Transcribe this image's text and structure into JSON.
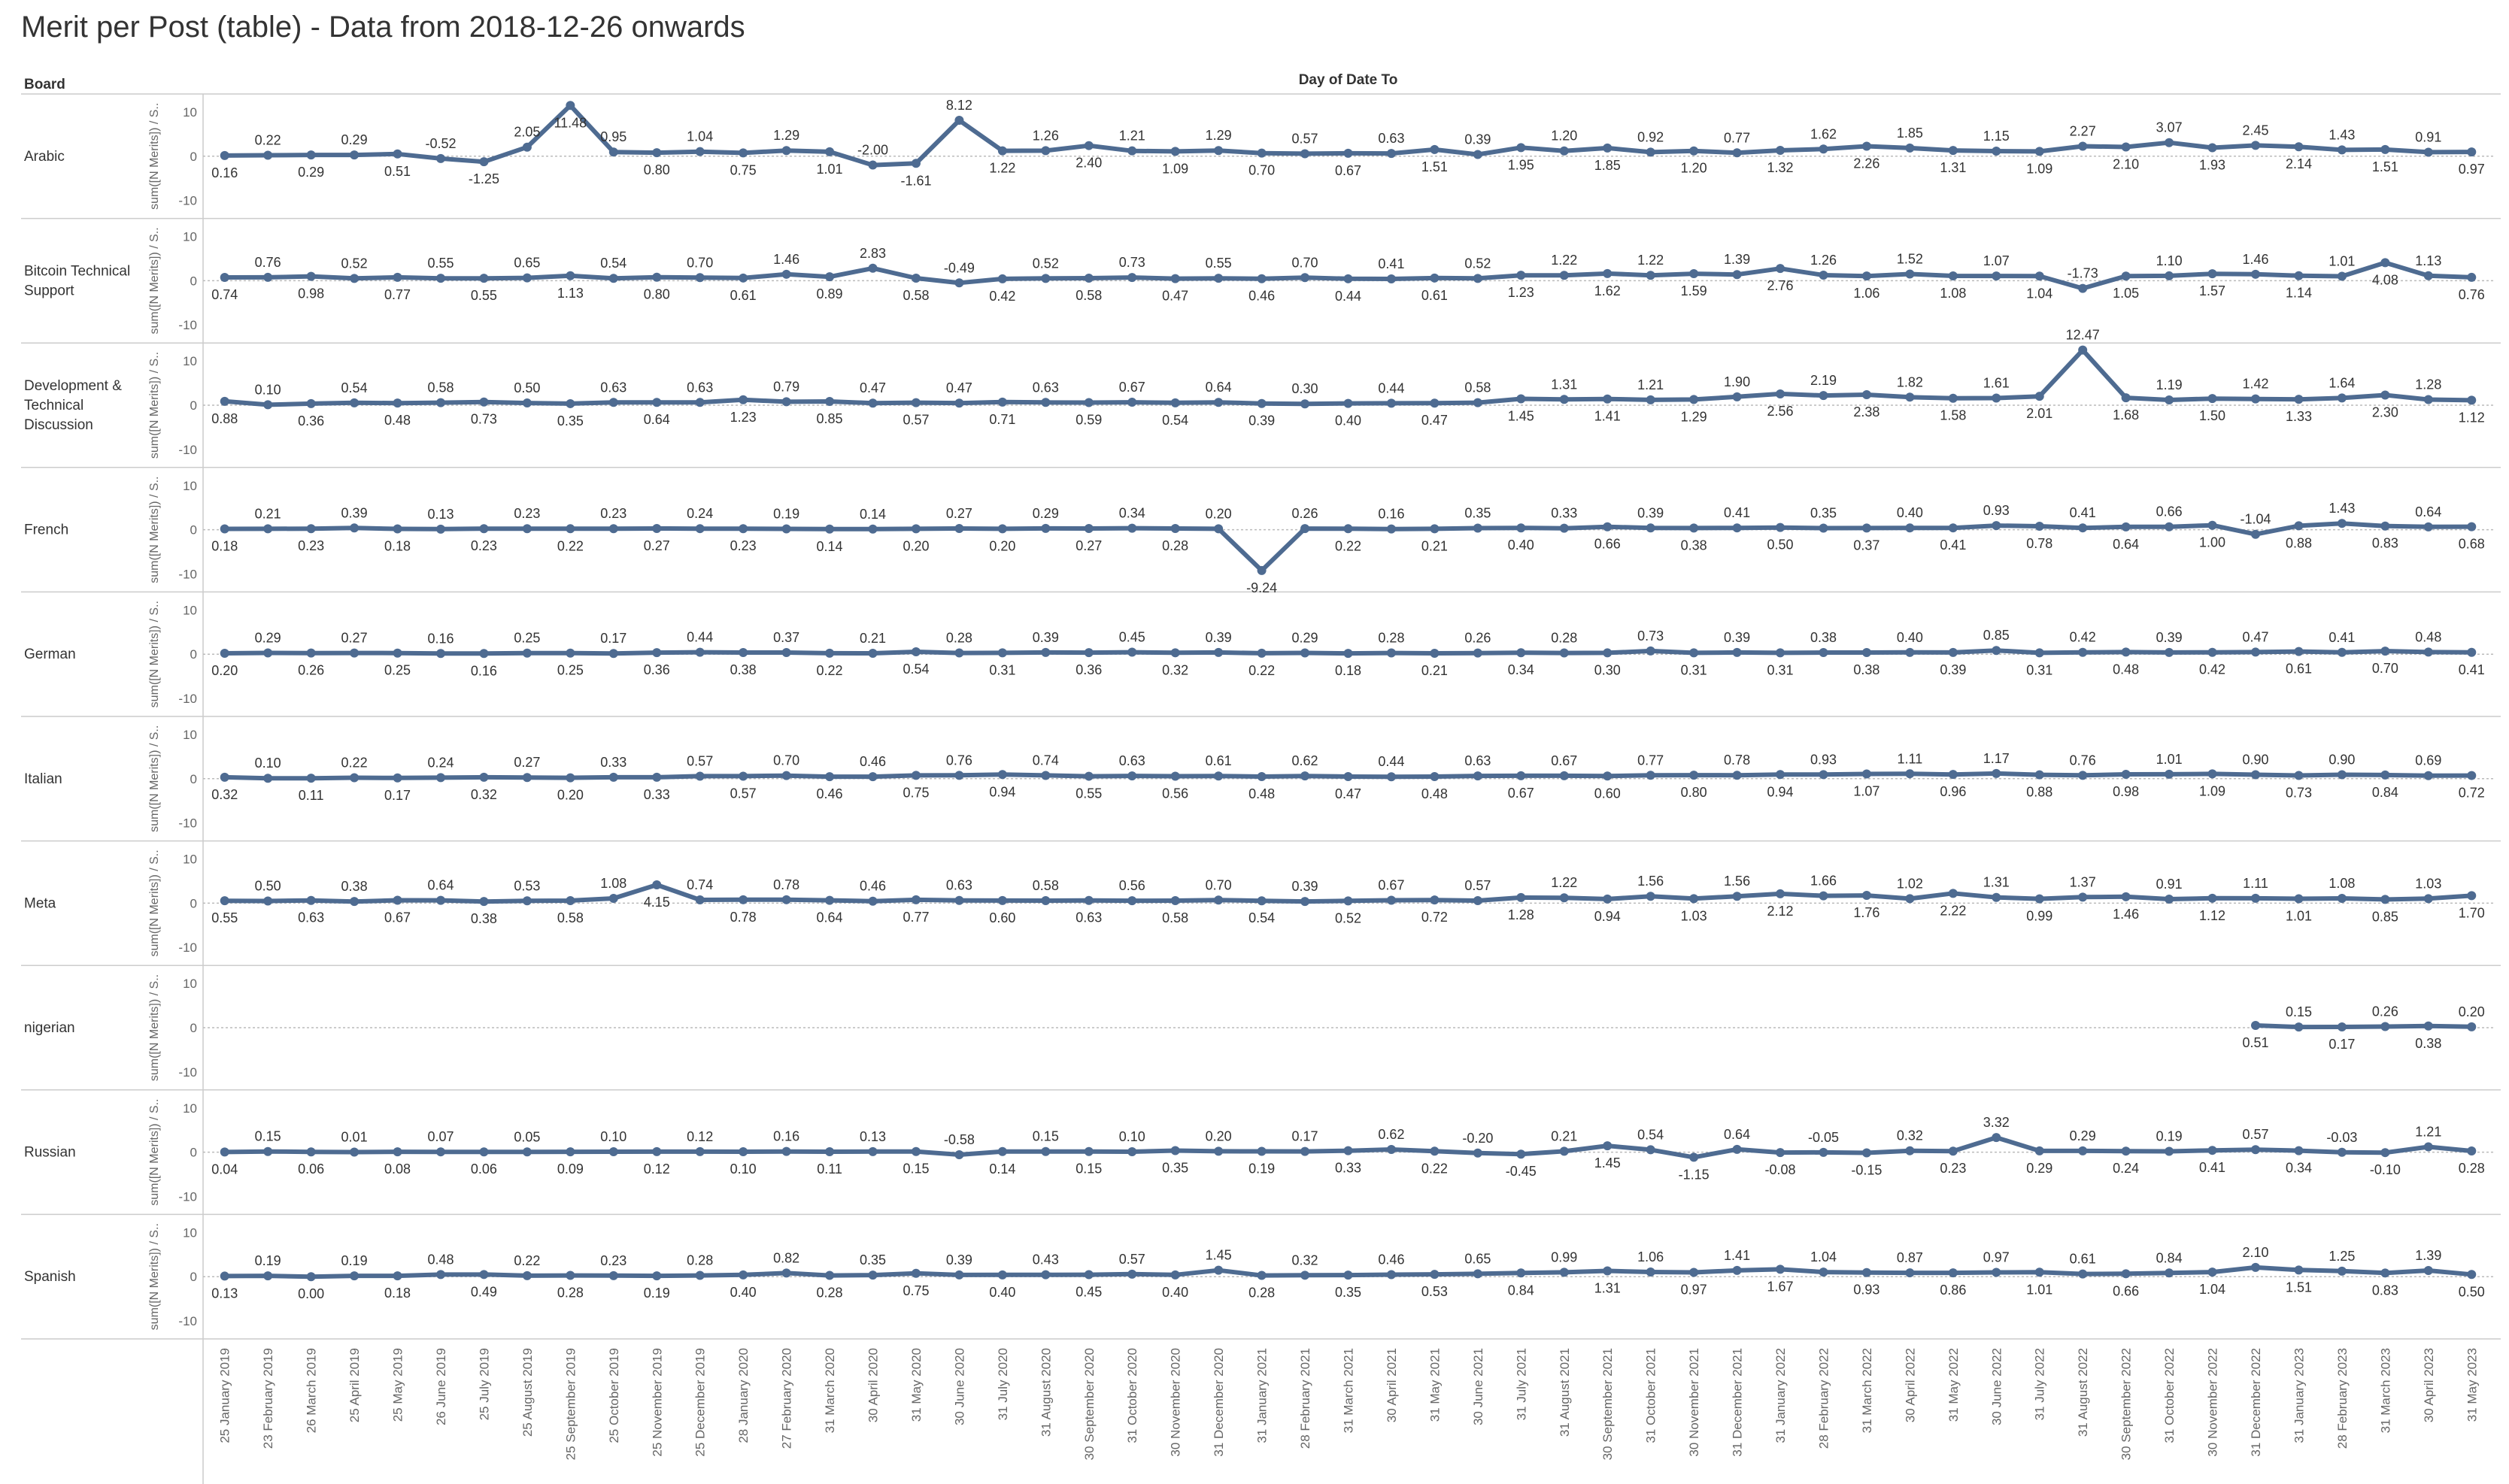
{
  "title": "Merit per Post (table) - Data from 2018-12-26 onwards",
  "colors": {
    "line": "#4e6b91",
    "grid": "#dddddd",
    "zero": "#bbbbbb",
    "text": "#333333",
    "axis_text": "#666666"
  },
  "chart_data": {
    "type": "line",
    "title": "Merit per Post (table) - Data from 2018-12-26 onwards",
    "row_header": "Board",
    "column_header": "Day of Date To",
    "ylabel": "sum([N Merits]) / S..",
    "ylim": [
      -10,
      10
    ],
    "yticks": [
      10,
      0,
      -10
    ],
    "x": [
      "25 January 2019",
      "23 February 2019",
      "26 March 2019",
      "25 April 2019",
      "25 May 2019",
      "26 June 2019",
      "25 July 2019",
      "25 August 2019",
      "25 September 2019",
      "25 October 2019",
      "25 November 2019",
      "25 December 2019",
      "28 January 2020",
      "27 February 2020",
      "31 March 2020",
      "30 April 2020",
      "31 May 2020",
      "30 June 2020",
      "31 July 2020",
      "31 August 2020",
      "30 September 2020",
      "31 October 2020",
      "30 November 2020",
      "31 December 2020",
      "31 January 2021",
      "28 February 2021",
      "31 March 2021",
      "30 April 2021",
      "31 May 2021",
      "30 June 2021",
      "31 July 2021",
      "31 August 2021",
      "30 September 2021",
      "31 October 2021",
      "30 November 2021",
      "31 December 2021",
      "31 January 2022",
      "28 February 2022",
      "31 March 2022",
      "30 April 2022",
      "31 May 2022",
      "30 June 2022",
      "31 July 2022",
      "31 August 2022",
      "30 September 2022",
      "31 October 2022",
      "30 November 2022",
      "31 December 2022",
      "31 January 2023",
      "28 February 2023",
      "31 March 2023",
      "30 April 2023",
      "31 May 2023"
    ],
    "series": [
      {
        "name": "Arabic",
        "label_lines": [
          "Arabic"
        ],
        "values": [
          0.16,
          0.22,
          0.29,
          0.29,
          0.51,
          -0.52,
          -1.25,
          2.05,
          11.48,
          0.95,
          0.8,
          1.04,
          0.75,
          1.29,
          1.01,
          -2.0,
          -1.61,
          8.12,
          1.22,
          1.26,
          2.4,
          1.21,
          1.09,
          1.29,
          0.7,
          0.57,
          0.67,
          0.63,
          1.51,
          0.39,
          1.95,
          1.2,
          1.85,
          0.92,
          1.2,
          0.77,
          1.32,
          1.62,
          2.26,
          1.85,
          1.31,
          1.15,
          1.09,
          2.27,
          2.1,
          3.07,
          1.93,
          2.45,
          2.14,
          1.43,
          1.51,
          0.91,
          0.97
        ]
      },
      {
        "name": "Bitcoin Technical Support",
        "label_lines": [
          "Bitcoin Technical",
          "Support"
        ],
        "values": [
          0.74,
          0.76,
          0.98,
          0.52,
          0.77,
          0.55,
          0.55,
          0.65,
          1.13,
          0.54,
          0.8,
          0.7,
          0.61,
          1.46,
          0.89,
          2.83,
          0.58,
          -0.49,
          0.42,
          0.52,
          0.58,
          0.73,
          0.47,
          0.55,
          0.46,
          0.7,
          0.44,
          0.41,
          0.61,
          0.52,
          1.23,
          1.22,
          1.62,
          1.22,
          1.59,
          1.39,
          2.76,
          1.26,
          1.06,
          1.52,
          1.08,
          1.07,
          1.04,
          -1.73,
          1.05,
          1.1,
          1.57,
          1.46,
          1.14,
          1.01,
          4.08,
          1.13,
          0.76
        ]
      },
      {
        "name": "Development & Technical Discussion",
        "label_lines": [
          "Development &",
          "Technical",
          "Discussion"
        ],
        "values": [
          0.88,
          0.1,
          0.36,
          0.54,
          0.48,
          0.58,
          0.73,
          0.5,
          0.35,
          0.63,
          0.64,
          0.63,
          1.23,
          0.79,
          0.85,
          0.47,
          0.57,
          0.47,
          0.71,
          0.63,
          0.59,
          0.67,
          0.54,
          0.64,
          0.39,
          0.3,
          0.4,
          0.44,
          0.47,
          0.58,
          1.45,
          1.31,
          1.41,
          1.21,
          1.29,
          1.9,
          2.56,
          2.19,
          2.38,
          1.82,
          1.58,
          1.61,
          2.01,
          12.47,
          1.68,
          1.19,
          1.5,
          1.42,
          1.33,
          1.64,
          2.3,
          1.28,
          1.12
        ]
      },
      {
        "name": "French",
        "label_lines": [
          "French"
        ],
        "values": [
          0.18,
          0.21,
          0.23,
          0.39,
          0.18,
          0.13,
          0.23,
          0.23,
          0.22,
          0.23,
          0.27,
          0.24,
          0.23,
          0.19,
          0.14,
          0.14,
          0.2,
          0.27,
          0.2,
          0.29,
          0.27,
          0.34,
          0.28,
          0.2,
          -9.24,
          0.26,
          0.22,
          0.16,
          0.21,
          0.35,
          0.4,
          0.33,
          0.66,
          0.39,
          0.38,
          0.41,
          0.5,
          0.35,
          0.37,
          0.4,
          0.41,
          0.93,
          0.78,
          0.41,
          0.64,
          0.66,
          1.0,
          -1.04,
          0.88,
          1.43,
          0.83,
          0.64,
          0.68
        ]
      },
      {
        "name": "German",
        "label_lines": [
          "German"
        ],
        "values": [
          0.2,
          0.29,
          0.26,
          0.27,
          0.25,
          0.16,
          0.16,
          0.25,
          0.25,
          0.17,
          0.36,
          0.44,
          0.38,
          0.37,
          0.22,
          0.21,
          0.54,
          0.28,
          0.31,
          0.39,
          0.36,
          0.45,
          0.32,
          0.39,
          0.22,
          0.29,
          0.18,
          0.28,
          0.21,
          0.26,
          0.34,
          0.28,
          0.3,
          0.73,
          0.31,
          0.39,
          0.31,
          0.38,
          0.38,
          0.4,
          0.39,
          0.85,
          0.31,
          0.42,
          0.48,
          0.39,
          0.42,
          0.47,
          0.61,
          0.41,
          0.7,
          0.48,
          0.41
        ]
      },
      {
        "name": "Italian",
        "label_lines": [
          "Italian"
        ],
        "values": [
          0.32,
          0.1,
          0.11,
          0.22,
          0.17,
          0.24,
          0.32,
          0.27,
          0.2,
          0.33,
          0.33,
          0.57,
          0.57,
          0.7,
          0.46,
          0.46,
          0.75,
          0.76,
          0.94,
          0.74,
          0.55,
          0.63,
          0.56,
          0.61,
          0.48,
          0.62,
          0.47,
          0.44,
          0.48,
          0.63,
          0.67,
          0.67,
          0.6,
          0.77,
          0.8,
          0.78,
          0.94,
          0.93,
          1.07,
          1.11,
          0.96,
          1.17,
          0.88,
          0.76,
          0.98,
          1.01,
          1.09,
          0.9,
          0.73,
          0.9,
          0.84,
          0.69,
          0.72
        ]
      },
      {
        "name": "Meta",
        "label_lines": [
          "Meta"
        ],
        "values": [
          0.55,
          0.5,
          0.63,
          0.38,
          0.67,
          0.64,
          0.38,
          0.53,
          0.58,
          1.08,
          4.15,
          0.74,
          0.78,
          0.78,
          0.64,
          0.46,
          0.77,
          0.63,
          0.6,
          0.58,
          0.63,
          0.56,
          0.58,
          0.7,
          0.54,
          0.39,
          0.52,
          0.67,
          0.72,
          0.57,
          1.28,
          1.22,
          0.94,
          1.56,
          1.03,
          1.56,
          2.12,
          1.66,
          1.76,
          1.02,
          2.22,
          1.31,
          0.99,
          1.37,
          1.46,
          0.91,
          1.12,
          1.11,
          1.01,
          1.08,
          0.85,
          1.03,
          1.7
        ]
      },
      {
        "name": "nigerian",
        "label_lines": [
          "nigerian"
        ],
        "values": [
          null,
          null,
          null,
          null,
          null,
          null,
          null,
          null,
          null,
          null,
          null,
          null,
          null,
          null,
          null,
          null,
          null,
          null,
          null,
          null,
          null,
          null,
          null,
          null,
          null,
          null,
          null,
          null,
          null,
          null,
          null,
          null,
          null,
          null,
          null,
          null,
          null,
          null,
          null,
          null,
          null,
          null,
          null,
          null,
          null,
          null,
          null,
          0.51,
          0.15,
          0.17,
          0.26,
          0.38,
          0.2
        ]
      },
      {
        "name": "Russian",
        "label_lines": [
          "Russian"
        ],
        "values": [
          0.04,
          0.15,
          0.06,
          0.01,
          0.08,
          0.07,
          0.06,
          0.05,
          0.09,
          0.1,
          0.12,
          0.12,
          0.1,
          0.16,
          0.11,
          0.13,
          0.15,
          -0.58,
          0.14,
          0.15,
          0.15,
          0.1,
          0.35,
          0.2,
          0.19,
          0.17,
          0.33,
          0.62,
          0.22,
          -0.2,
          -0.45,
          0.21,
          1.45,
          0.54,
          -1.15,
          0.64,
          -0.08,
          -0.05,
          -0.15,
          0.32,
          0.23,
          3.32,
          0.29,
          0.29,
          0.24,
          0.19,
          0.41,
          0.57,
          0.34,
          -0.03,
          -0.1,
          1.21,
          0.28
        ]
      },
      {
        "name": "Spanish",
        "label_lines": [
          "Spanish"
        ],
        "values": [
          0.13,
          0.19,
          0.0,
          0.19,
          0.18,
          0.48,
          0.49,
          0.22,
          0.28,
          0.23,
          0.19,
          0.28,
          0.4,
          0.82,
          0.28,
          0.35,
          0.75,
          0.39,
          0.4,
          0.43,
          0.45,
          0.57,
          0.4,
          1.45,
          0.28,
          0.32,
          0.35,
          0.46,
          0.53,
          0.65,
          0.84,
          0.99,
          1.31,
          1.06,
          0.97,
          1.41,
          1.67,
          1.04,
          0.93,
          0.87,
          0.86,
          0.97,
          1.01,
          0.61,
          0.66,
          0.84,
          1.04,
          2.1,
          1.51,
          1.25,
          0.83,
          1.39,
          0.5
        ]
      }
    ]
  }
}
